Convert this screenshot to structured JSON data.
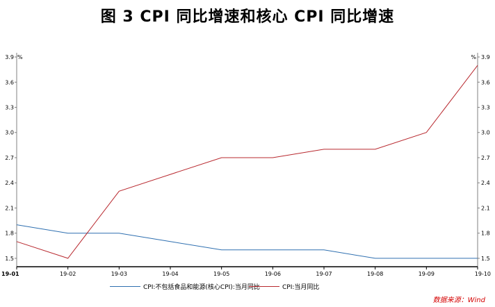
{
  "chart_data": {
    "type": "line",
    "title": "图 3   CPI 同比增速和核心 CPI 同比增速",
    "categories": [
      "19-01",
      "19-02",
      "19-03",
      "19-04",
      "19-05",
      "19-06",
      "19-07",
      "19-08",
      "19-09",
      "19-10"
    ],
    "series": [
      {
        "name": "CPI:不包括食品和能源(核心CPI):当月同比",
        "color": "#2e6fb0",
        "values": [
          1.9,
          1.8,
          1.8,
          1.7,
          1.6,
          1.6,
          1.6,
          1.5,
          1.5,
          1.5
        ]
      },
      {
        "name": "CPI:当月同比",
        "color": "#b8282e",
        "values": [
          1.7,
          1.5,
          2.3,
          2.5,
          2.7,
          2.7,
          2.8,
          2.8,
          3.0,
          3.8
        ]
      }
    ],
    "ylim": [
      1.4,
      3.95
    ],
    "yticks": [
      "1.5",
      "1.8",
      "2.1",
      "2.4",
      "2.7",
      "3.0",
      "3.3",
      "3.6",
      "3.9"
    ],
    "y_unit_left": "%",
    "y_unit_right": "%",
    "grid": false,
    "legend": "bottom"
  },
  "source": "数据来源：Wind"
}
